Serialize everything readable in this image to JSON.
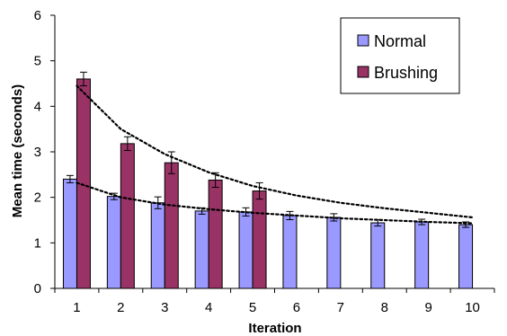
{
  "chart_data": {
    "type": "bar",
    "categories": [
      "1",
      "2",
      "3",
      "4",
      "5",
      "6",
      "7",
      "8",
      "9",
      "10"
    ],
    "series": [
      {
        "name": "Normal",
        "color": "#9999ff",
        "values": [
          2.4,
          2.02,
          1.88,
          1.7,
          1.68,
          1.6,
          1.56,
          1.44,
          1.46,
          1.4
        ],
        "errors": [
          0.08,
          0.07,
          0.13,
          0.07,
          0.09,
          0.09,
          0.08,
          0.07,
          0.06,
          0.06
        ]
      },
      {
        "name": "Brushing",
        "color": "#993366",
        "values": [
          4.6,
          3.18,
          2.76,
          2.38,
          2.14,
          null,
          null,
          null,
          null,
          null
        ],
        "errors": [
          0.15,
          0.15,
          0.24,
          0.16,
          0.18,
          null,
          null,
          null,
          null,
          null
        ]
      }
    ],
    "trendlines": [
      {
        "series": "Brushing",
        "style": "dotted",
        "values": [
          4.45,
          3.5,
          2.95,
          2.55,
          2.25,
          2.04,
          1.88,
          1.76,
          1.66,
          1.56
        ]
      },
      {
        "series": "Normal",
        "style": "dotted",
        "values": [
          2.32,
          2.0,
          1.84,
          1.74,
          1.66,
          1.6,
          1.54,
          1.5,
          1.46,
          1.43
        ]
      }
    ],
    "xlabel": "Iteration",
    "ylabel": "Mean time (seconds)",
    "ylim": [
      0,
      6
    ],
    "yticks": [
      "0",
      "1",
      "2",
      "3",
      "4",
      "5",
      "6"
    ],
    "grid": false,
    "legend_position": "top-right"
  }
}
